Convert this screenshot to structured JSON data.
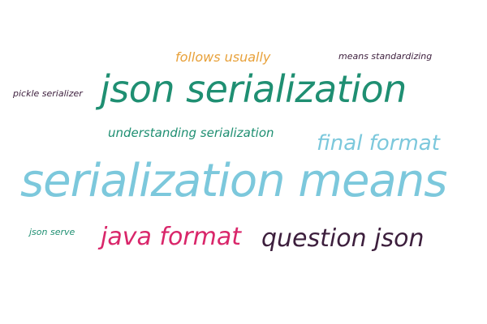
{
  "word_cloud": {
    "words": [
      {
        "text": "pickle serializer",
        "color": "#3d1f3d"
      },
      {
        "text": "follows usually",
        "color": "#e8a13a"
      },
      {
        "text": "means standardizing",
        "color": "#3d1f3d"
      },
      {
        "text": "json serialization",
        "color": "#1f8f72"
      },
      {
        "text": "understanding serialization",
        "color": "#1f8f72"
      },
      {
        "text": "final format",
        "color": "#7cc8dc"
      },
      {
        "text": "serialization means",
        "color": "#7cc8dc"
      },
      {
        "text": "json serve",
        "color": "#1f8f72"
      },
      {
        "text": "java format",
        "color": "#d9266a"
      },
      {
        "text": "question json",
        "color": "#3d1f3d"
      }
    ]
  }
}
